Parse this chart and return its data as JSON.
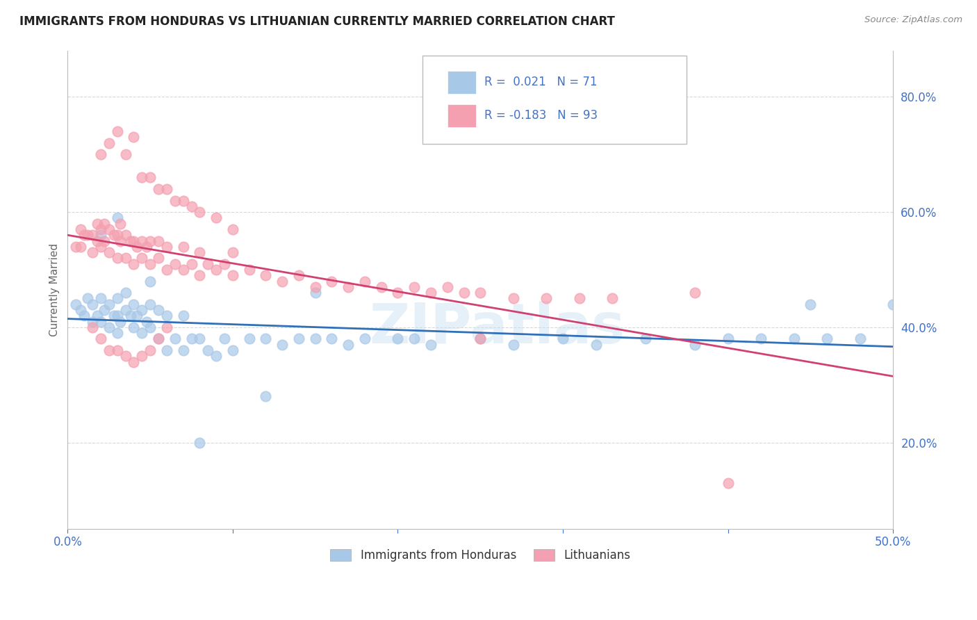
{
  "title": "IMMIGRANTS FROM HONDURAS VS LITHUANIAN CURRENTLY MARRIED CORRELATION CHART",
  "source": "Source: ZipAtlas.com",
  "ylabel": "Currently Married",
  "xmin": 0.0,
  "xmax": 0.5,
  "ymin": 0.05,
  "ymax": 0.88,
  "yticks": [
    0.2,
    0.4,
    0.6,
    0.8
  ],
  "ytick_labels": [
    "20.0%",
    "40.0%",
    "60.0%",
    "80.0%"
  ],
  "grid_color": "#d8d8d8",
  "background_color": "#ffffff",
  "blue_color": "#a8c8e8",
  "pink_color": "#f4a0b0",
  "blue_line_color": "#3070b8",
  "pink_line_color": "#d04070",
  "R_blue": 0.021,
  "N_blue": 71,
  "R_pink": -0.183,
  "N_pink": 93,
  "legend_label_blue": "Immigrants from Honduras",
  "legend_label_pink": "Lithuanians",
  "watermark": "ZIPatlas",
  "blue_x": [
    0.005,
    0.008,
    0.01,
    0.012,
    0.015,
    0.015,
    0.018,
    0.02,
    0.02,
    0.022,
    0.025,
    0.025,
    0.028,
    0.03,
    0.03,
    0.03,
    0.032,
    0.035,
    0.035,
    0.038,
    0.04,
    0.04,
    0.042,
    0.045,
    0.045,
    0.048,
    0.05,
    0.05,
    0.055,
    0.055,
    0.06,
    0.06,
    0.065,
    0.07,
    0.07,
    0.075,
    0.08,
    0.085,
    0.09,
    0.095,
    0.1,
    0.11,
    0.12,
    0.13,
    0.14,
    0.15,
    0.16,
    0.17,
    0.18,
    0.2,
    0.21,
    0.22,
    0.25,
    0.27,
    0.3,
    0.32,
    0.35,
    0.38,
    0.4,
    0.42,
    0.44,
    0.46,
    0.48,
    0.5,
    0.02,
    0.03,
    0.05,
    0.08,
    0.12,
    0.15,
    0.45
  ],
  "blue_y": [
    0.44,
    0.43,
    0.42,
    0.45,
    0.41,
    0.44,
    0.42,
    0.41,
    0.45,
    0.43,
    0.4,
    0.44,
    0.42,
    0.39,
    0.42,
    0.45,
    0.41,
    0.43,
    0.46,
    0.42,
    0.4,
    0.44,
    0.42,
    0.39,
    0.43,
    0.41,
    0.4,
    0.44,
    0.38,
    0.43,
    0.36,
    0.42,
    0.38,
    0.36,
    0.42,
    0.38,
    0.38,
    0.36,
    0.35,
    0.38,
    0.36,
    0.38,
    0.38,
    0.37,
    0.38,
    0.38,
    0.38,
    0.37,
    0.38,
    0.38,
    0.38,
    0.37,
    0.38,
    0.37,
    0.38,
    0.37,
    0.38,
    0.37,
    0.38,
    0.38,
    0.38,
    0.38,
    0.38,
    0.44,
    0.56,
    0.59,
    0.48,
    0.2,
    0.28,
    0.46,
    0.44
  ],
  "pink_x": [
    0.005,
    0.008,
    0.008,
    0.01,
    0.012,
    0.015,
    0.015,
    0.018,
    0.018,
    0.02,
    0.02,
    0.022,
    0.022,
    0.025,
    0.025,
    0.028,
    0.03,
    0.03,
    0.032,
    0.032,
    0.035,
    0.035,
    0.038,
    0.04,
    0.04,
    0.042,
    0.045,
    0.045,
    0.048,
    0.05,
    0.05,
    0.055,
    0.055,
    0.06,
    0.06,
    0.065,
    0.07,
    0.07,
    0.075,
    0.08,
    0.08,
    0.085,
    0.09,
    0.095,
    0.1,
    0.1,
    0.11,
    0.12,
    0.13,
    0.14,
    0.15,
    0.16,
    0.17,
    0.18,
    0.19,
    0.2,
    0.21,
    0.22,
    0.23,
    0.24,
    0.25,
    0.27,
    0.29,
    0.31,
    0.33,
    0.02,
    0.025,
    0.03,
    0.035,
    0.04,
    0.045,
    0.05,
    0.055,
    0.06,
    0.065,
    0.07,
    0.075,
    0.08,
    0.09,
    0.1,
    0.015,
    0.02,
    0.025,
    0.03,
    0.035,
    0.04,
    0.045,
    0.05,
    0.055,
    0.06,
    0.25,
    0.38,
    0.4
  ],
  "pink_y": [
    0.54,
    0.54,
    0.57,
    0.56,
    0.56,
    0.53,
    0.56,
    0.55,
    0.58,
    0.54,
    0.57,
    0.55,
    0.58,
    0.53,
    0.57,
    0.56,
    0.52,
    0.56,
    0.55,
    0.58,
    0.52,
    0.56,
    0.55,
    0.51,
    0.55,
    0.54,
    0.52,
    0.55,
    0.54,
    0.51,
    0.55,
    0.52,
    0.55,
    0.5,
    0.54,
    0.51,
    0.5,
    0.54,
    0.51,
    0.49,
    0.53,
    0.51,
    0.5,
    0.51,
    0.49,
    0.53,
    0.5,
    0.49,
    0.48,
    0.49,
    0.47,
    0.48,
    0.47,
    0.48,
    0.47,
    0.46,
    0.47,
    0.46,
    0.47,
    0.46,
    0.46,
    0.45,
    0.45,
    0.45,
    0.45,
    0.7,
    0.72,
    0.74,
    0.7,
    0.73,
    0.66,
    0.66,
    0.64,
    0.64,
    0.62,
    0.62,
    0.61,
    0.6,
    0.59,
    0.57,
    0.4,
    0.38,
    0.36,
    0.36,
    0.35,
    0.34,
    0.35,
    0.36,
    0.38,
    0.4,
    0.38,
    0.46,
    0.13
  ]
}
